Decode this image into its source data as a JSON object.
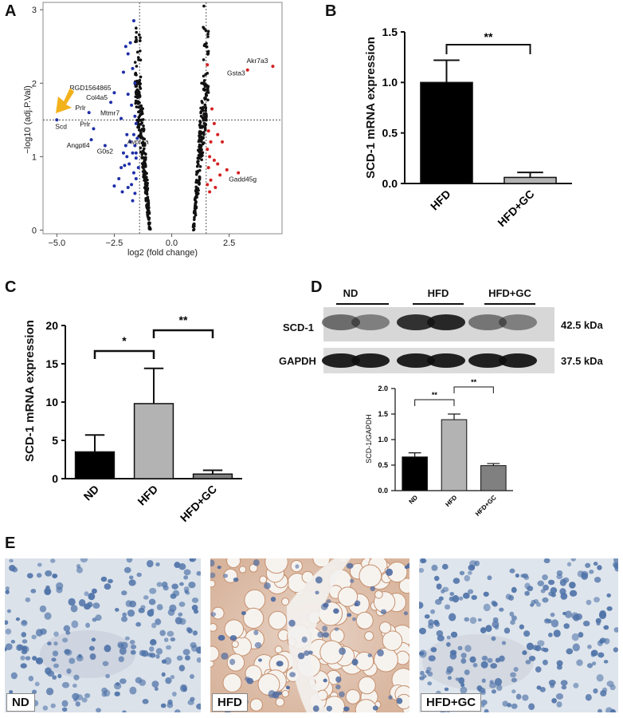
{
  "panels": {
    "a": "A",
    "b": "B",
    "c": "C",
    "d": "D",
    "e": "E"
  },
  "chart_data": [
    {
      "type": "scatter",
      "panel": "A",
      "xlabel": "log2 (fold change)",
      "ylabel": "−log10 (adj.P.Val)",
      "xlim": [
        -5.6,
        4.8
      ],
      "ylim": [
        -0.05,
        3.1
      ],
      "xticks": [
        "−5.0",
        "−2.5",
        "0.0",
        "2.5"
      ],
      "xtick_values": [
        -5.0,
        -2.5,
        0.0,
        2.5
      ],
      "yticks": [
        "0",
        "1",
        "2",
        "3"
      ],
      "ytick_values": [
        0,
        1,
        2,
        3
      ],
      "thresholds": {
        "x": [
          -1.4,
          1.5
        ],
        "y": 1.5
      },
      "colors": {
        "down": "#1f2fa8",
        "up": "#d42020",
        "ns": "#111111"
      },
      "labeled_points": [
        {
          "label": "Scd",
          "x": -5.0,
          "y": 1.5,
          "group": "down"
        },
        {
          "label": "Prlr",
          "x": -3.6,
          "y": 1.6,
          "group": "down"
        },
        {
          "label": "Prlr",
          "x": -3.4,
          "y": 1.38,
          "group": "down"
        },
        {
          "label": "Angptl4",
          "x": -3.5,
          "y": 1.23,
          "group": "down"
        },
        {
          "label": "Col4a5",
          "x": -2.65,
          "y": 1.74,
          "group": "down"
        },
        {
          "label": "RGD1564865",
          "x": -2.5,
          "y": 1.87,
          "group": "down"
        },
        {
          "label": "Mtmr7",
          "x": -2.2,
          "y": 1.52,
          "group": "down"
        },
        {
          "label": "Avpr1a",
          "x": -2.0,
          "y": 1.15,
          "group": "down"
        },
        {
          "label": "G0s2",
          "x": -2.9,
          "y": 1.15,
          "group": "down"
        },
        {
          "label": "Akr7a3",
          "x": 4.4,
          "y": 2.23,
          "group": "up"
        },
        {
          "label": "Gsta3",
          "x": 3.3,
          "y": 2.18,
          "group": "up"
        },
        {
          "label": "Gadd45g",
          "x": 2.9,
          "y": 0.78,
          "group": "up"
        }
      ],
      "down_points": [
        [
          -1.65,
          2.85
        ],
        [
          -1.8,
          2.55
        ],
        [
          -1.9,
          2.4
        ],
        [
          -2.0,
          2.5
        ],
        [
          -2.1,
          2.15
        ],
        [
          -1.7,
          2.2
        ],
        [
          -1.6,
          2.0
        ],
        [
          -1.9,
          1.85
        ],
        [
          -1.75,
          1.7
        ],
        [
          -1.6,
          1.55
        ],
        [
          -1.55,
          1.45
        ],
        [
          -1.65,
          1.3
        ],
        [
          -1.5,
          1.25
        ],
        [
          -1.6,
          1.15
        ],
        [
          -1.7,
          1.05
        ],
        [
          -1.55,
          0.98
        ],
        [
          -1.85,
          0.9
        ],
        [
          -1.95,
          1.0
        ],
        [
          -2.05,
          0.88
        ],
        [
          -2.2,
          0.85
        ],
        [
          -1.65,
          0.78
        ],
        [
          -1.55,
          0.7
        ],
        [
          -1.75,
          0.62
        ],
        [
          -1.9,
          0.58
        ],
        [
          -2.3,
          0.7
        ],
        [
          -2.5,
          0.6
        ],
        [
          -2.15,
          0.52
        ],
        [
          -1.6,
          0.5
        ],
        [
          -1.7,
          0.4
        ],
        [
          -1.55,
          1.05
        ],
        [
          -2.1,
          1.05
        ],
        [
          -1.8,
          1.2
        ],
        [
          -1.95,
          1.3
        ],
        [
          -1.45,
          0.85
        ]
      ],
      "up_points": [
        [
          1.55,
          2.25
        ],
        [
          1.75,
          1.65
        ],
        [
          1.85,
          1.45
        ],
        [
          1.6,
          1.35
        ],
        [
          1.7,
          1.2
        ],
        [
          2.0,
          1.3
        ],
        [
          2.2,
          1.2
        ],
        [
          1.55,
          1.1
        ],
        [
          1.65,
          1.0
        ],
        [
          1.85,
          0.95
        ],
        [
          2.0,
          0.9
        ],
        [
          1.6,
          0.85
        ],
        [
          2.4,
          0.82
        ],
        [
          2.1,
          0.75
        ],
        [
          1.7,
          0.68
        ],
        [
          1.55,
          0.62
        ],
        [
          1.9,
          0.58
        ],
        [
          1.65,
          0.52
        ]
      ],
      "ns_points": [
        [
          1.4,
          3.05
        ],
        [
          1.5,
          2.5
        ],
        [
          1.3,
          2.0
        ],
        [
          -1.55,
          2.75
        ],
        [
          -1.45,
          2.35
        ]
      ]
    },
    {
      "type": "bar",
      "panel": "B",
      "categories": [
        "HFD",
        "HFD+GC"
      ],
      "values": [
        1.0,
        0.06
      ],
      "errors": [
        0.22,
        0.05
      ],
      "colors": [
        "#000000",
        "#b3b3b3"
      ],
      "ylabel": "SCD-1 mRNA expression",
      "ylim": [
        0,
        1.5
      ],
      "yticks": [
        "0.0",
        "0.5",
        "1.0",
        "1.5"
      ],
      "significance": [
        {
          "from": 0,
          "to": 1,
          "label": "**"
        }
      ]
    },
    {
      "type": "bar",
      "panel": "C",
      "categories": [
        "ND",
        "HFD",
        "HFD+GC"
      ],
      "values": [
        3.5,
        9.8,
        0.6
      ],
      "errors": [
        2.2,
        4.6,
        0.5
      ],
      "colors": [
        "#000000",
        "#b3b3b3",
        "#808080"
      ],
      "ylabel": "SCD-1 mRNA expression",
      "ylim": [
        0,
        20
      ],
      "yticks": [
        "0",
        "5",
        "10",
        "15",
        "20"
      ],
      "significance": [
        {
          "from": 0,
          "to": 1,
          "label": "*"
        },
        {
          "from": 1,
          "to": 2,
          "label": "**"
        }
      ]
    },
    {
      "type": "bar",
      "panel": "D",
      "categories": [
        "ND",
        "HFD",
        "HFD+GC"
      ],
      "values": [
        0.66,
        1.39,
        0.49
      ],
      "errors": [
        0.08,
        0.11,
        0.04
      ],
      "colors": [
        "#000000",
        "#b3b3b3",
        "#808080"
      ],
      "ylabel": "SCD-1/GAPDH",
      "ylim": [
        0,
        2.0
      ],
      "yticks": [
        "0.0",
        "0.5",
        "1.0",
        "1.5",
        "2.0"
      ],
      "significance": [
        {
          "from": 0,
          "to": 1,
          "label": "**"
        },
        {
          "from": 1,
          "to": 2,
          "label": "**"
        }
      ]
    }
  ],
  "western_blot": {
    "groups": [
      "ND",
      "HFD",
      "HFD+GC"
    ],
    "rows": [
      {
        "name": "SCD-1",
        "size": "42.5 kDa"
      },
      {
        "name": "GAPDH",
        "size": "37.5 kDa"
      }
    ]
  },
  "ihc": {
    "labels": [
      "ND",
      "HFD",
      "HFD+GC"
    ],
    "colors": {
      "nucleus": "#4a6fa5",
      "background": "#dbe3ec",
      "lipid": "#f4f2ee",
      "stain": "#c98a68"
    }
  }
}
